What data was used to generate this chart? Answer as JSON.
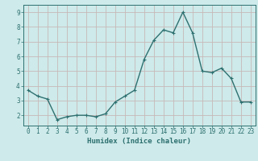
{
  "x": [
    0,
    1,
    2,
    3,
    4,
    5,
    6,
    7,
    8,
    9,
    10,
    11,
    12,
    13,
    14,
    15,
    16,
    17,
    18,
    19,
    20,
    21,
    22,
    23
  ],
  "y": [
    3.7,
    3.3,
    3.1,
    1.7,
    1.9,
    2.0,
    2.0,
    1.9,
    2.1,
    2.9,
    3.3,
    3.7,
    5.8,
    7.1,
    7.8,
    7.6,
    9.0,
    7.6,
    5.0,
    4.9,
    5.2,
    4.5,
    2.9,
    2.9
  ],
  "line_color": "#2e7070",
  "marker": "+",
  "marker_size": 3,
  "marker_linewidth": 0.8,
  "background_color": "#ceeaea",
  "grid_color": "#c8b8b8",
  "xlabel": "Humidex (Indice chaleur)",
  "xlabel_color": "#2e7070",
  "tick_color": "#2e7070",
  "spine_color": "#2e7070",
  "ylim": [
    1.3,
    9.5
  ],
  "xlim": [
    -0.5,
    23.5
  ],
  "yticks": [
    2,
    3,
    4,
    5,
    6,
    7,
    8,
    9
  ],
  "xticks": [
    0,
    1,
    2,
    3,
    4,
    5,
    6,
    7,
    8,
    9,
    10,
    11,
    12,
    13,
    14,
    15,
    16,
    17,
    18,
    19,
    20,
    21,
    22,
    23
  ],
  "linewidth": 1.0,
  "tick_fontsize": 5.5,
  "xlabel_fontsize": 6.5,
  "xlabel_fontweight": "bold"
}
